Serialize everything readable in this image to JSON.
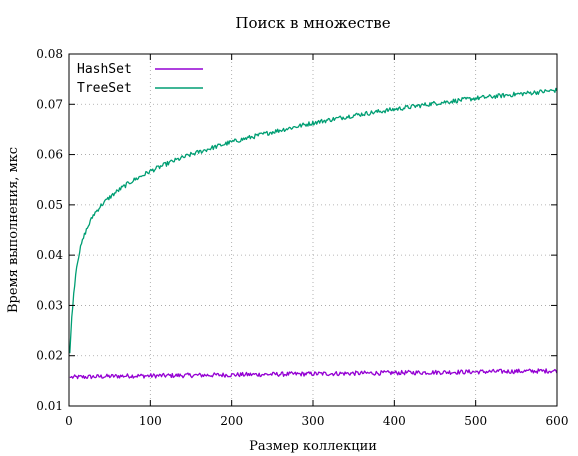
{
  "chart_data": {
    "type": "line",
    "title": "Поиск в множестве",
    "xlabel": "Размер коллекции",
    "ylabel": "Время выполнения, мкс",
    "xlim": [
      0,
      600
    ],
    "ylim": [
      0.01,
      0.08
    ],
    "xticks": [
      "0",
      "100",
      "200",
      "300",
      "400",
      "500",
      "600"
    ],
    "yticks": [
      "0.01",
      "0.02",
      "0.03",
      "0.04",
      "0.05",
      "0.06",
      "0.07",
      "0.08"
    ],
    "grid": true,
    "legend_position": "top-left",
    "series": [
      {
        "name": "HashSet",
        "color": "#9400d3",
        "x": [
          1,
          25,
          50,
          75,
          100,
          150,
          200,
          250,
          300,
          350,
          400,
          450,
          500,
          550,
          600
        ],
        "y": [
          0.0157,
          0.0158,
          0.0159,
          0.016,
          0.016,
          0.0161,
          0.0162,
          0.0163,
          0.0164,
          0.0165,
          0.0166,
          0.0167,
          0.0168,
          0.0169,
          0.017
        ]
      },
      {
        "name": "TreeSet",
        "color": "#009e73",
        "x": [
          1,
          3,
          5,
          8,
          10,
          15,
          20,
          30,
          40,
          50,
          60,
          75,
          100,
          125,
          150,
          175,
          200,
          250,
          300,
          350,
          400,
          450,
          500,
          550,
          600
        ],
        "y": [
          0.0205,
          0.0265,
          0.031,
          0.036,
          0.0385,
          0.042,
          0.0445,
          0.048,
          0.05,
          0.0515,
          0.0528,
          0.0545,
          0.0567,
          0.0585,
          0.06,
          0.0613,
          0.0625,
          0.0645,
          0.0663,
          0.0678,
          0.069,
          0.0702,
          0.0712,
          0.072,
          0.0728
        ]
      }
    ]
  }
}
